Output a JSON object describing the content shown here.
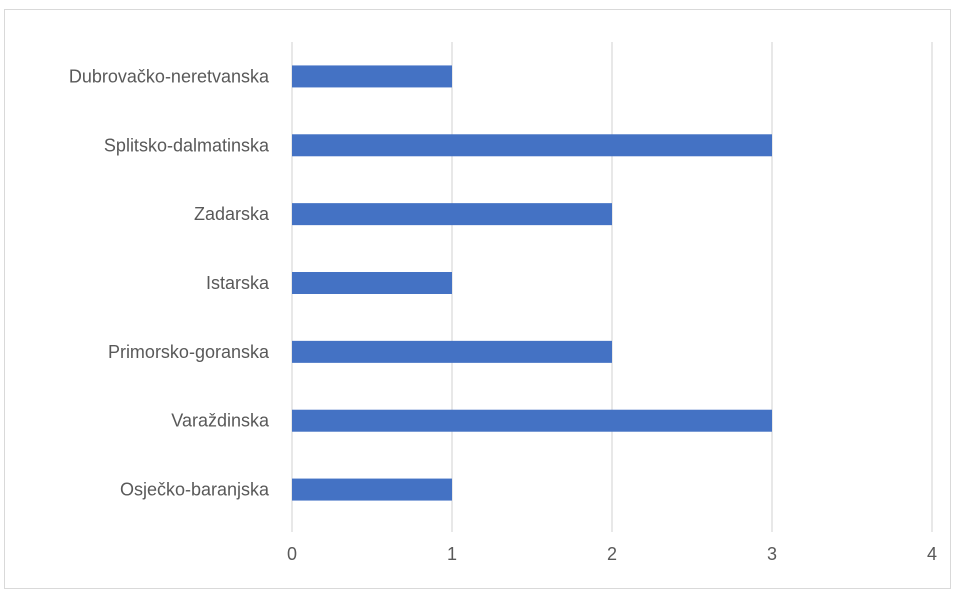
{
  "chart_data": {
    "type": "bar",
    "orientation": "horizontal",
    "categories": [
      "Osječko-baranjska",
      "Varaždinska",
      "Primorsko-goranska",
      "Istarska",
      "Zadarska",
      "Splitsko-dalmatinska",
      "Dubrovačko-neretvanska"
    ],
    "values": [
      1,
      3,
      2,
      1,
      2,
      3,
      1
    ],
    "title": "",
    "xlabel": "",
    "ylabel": "",
    "xlim": [
      0,
      4
    ],
    "x_ticks": [
      0,
      1,
      2,
      3,
      4
    ],
    "grid": true,
    "legend": "none",
    "bar_color": "#4472c4",
    "grid_color": "#d9d9d9"
  }
}
